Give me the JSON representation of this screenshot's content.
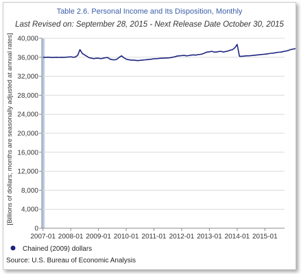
{
  "chart_data": {
    "type": "line",
    "title": "Table 2.6. Personal Income and Its Disposition, Monthly",
    "subtitle": "Last Revised on: September 28, 2015 - Next Release Date October 30, 2015",
    "ylabel": "[Billions of dollars; months are seasonally adjusted at annual rates]",
    "xlabel": "",
    "ylim": [
      0,
      40000
    ],
    "yticks": [
      "0",
      "4,000",
      "8,000",
      "12,000",
      "16,000",
      "20,000",
      "24,000",
      "28,000",
      "32,000",
      "36,000",
      "40,000"
    ],
    "xticks": [
      "2007-01",
      "2008-01",
      "2009-01",
      "2010-01",
      "2011-01",
      "2012-01",
      "2013-01",
      "2014-01",
      "2015-01"
    ],
    "grid": true,
    "legend_position": "bottom-left",
    "source": "Source: U.S. Bureau of Economic Analysis",
    "series": [
      {
        "name": "Chained (2009) dollars",
        "color": "#1a237e",
        "x_start": "2007-01",
        "x_end": "2015-08",
        "values": [
          36000,
          35980,
          36020,
          36000,
          35950,
          35980,
          36000,
          35970,
          36000,
          35980,
          36020,
          36050,
          36100,
          36000,
          36050,
          36400,
          37600,
          36800,
          36500,
          36200,
          35900,
          35800,
          35700,
          35800,
          35800,
          35700,
          35800,
          35900,
          35950,
          35600,
          35500,
          35450,
          35600,
          36000,
          36300,
          35900,
          35600,
          35500,
          35400,
          35400,
          35350,
          35300,
          35350,
          35400,
          35450,
          35500,
          35550,
          35600,
          35700,
          35700,
          35750,
          35800,
          35800,
          35850,
          35850,
          35900,
          36000,
          36100,
          36250,
          36300,
          36350,
          36400,
          36300,
          36350,
          36450,
          36500,
          36450,
          36550,
          36600,
          36700,
          36900,
          37100,
          37150,
          37250,
          37100,
          37100,
          37200,
          37250,
          37100,
          37200,
          37300,
          37500,
          37600,
          38000,
          38700,
          36200,
          36200,
          36250,
          36300,
          36300,
          36350,
          36400,
          36450,
          36500,
          36550,
          36600,
          36650,
          36700,
          36800,
          36850,
          36900,
          37000,
          37050,
          37100,
          37200,
          37300,
          37400,
          37600,
          37700,
          37800,
          37800,
          37900,
          37850,
          37900,
          37950,
          38050,
          38100,
          38150,
          38200,
          38300
        ]
      }
    ]
  }
}
